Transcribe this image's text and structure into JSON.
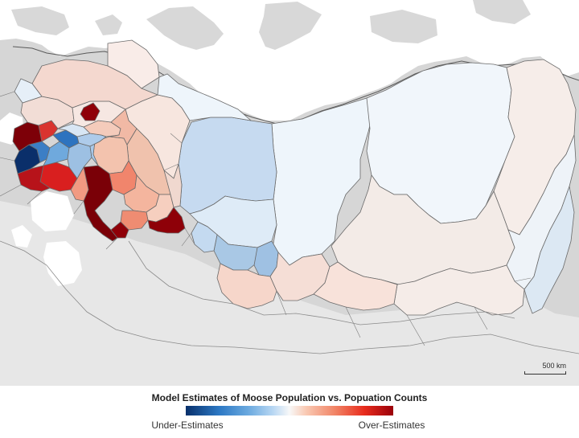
{
  "map": {
    "title": "Model Estimates of Moose Population vs. Popuation Counts",
    "legend": {
      "min_label": "Under-Estimates",
      "max_label": "Over-Estimates",
      "color_stops": [
        "#08306b",
        "#2c78c4",
        "#6aa9df",
        "#b8d7f3",
        "#f8f8f8",
        "#f9c9b3",
        "#f18466",
        "#e82c1d",
        "#9a000a"
      ]
    },
    "scale_bar": {
      "label": "500 km"
    },
    "colors": {
      "sea": "#ffffff",
      "land": "#d9d9d9",
      "land_light": "#e8e8e8",
      "border": "#555555",
      "outline": "#555555"
    }
  }
}
